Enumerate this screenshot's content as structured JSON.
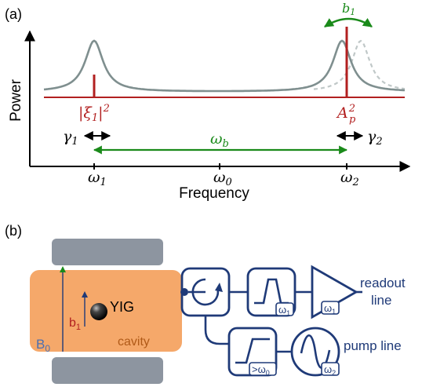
{
  "panel_a": {
    "label": "(a)",
    "ylabel": "Power",
    "xlabel": "Frequency",
    "xticks": [
      "ω",
      "ω",
      "ω"
    ],
    "xtick_subs": [
      "1",
      "0",
      "2"
    ],
    "peak_label_left": "|ξ",
    "peak_label_left_sub": "1",
    "peak_label_left_tail": "|",
    "peak_label_left_sup": "2",
    "peak_label_right": "A",
    "peak_label_right_sub": "p",
    "peak_label_right_sup": "2",
    "gamma1": "γ",
    "gamma1_sub": "1",
    "gamma2": "γ",
    "gamma2_sub": "2",
    "omega_b": "ω",
    "omega_b_sub": "b",
    "b1": "b",
    "b1_sub": "1"
  },
  "panel_b": {
    "label": "(b)",
    "yig": "YIG",
    "cavity": "cavity",
    "b0": "B",
    "b0_sub": "0",
    "b1": "b",
    "b1_sub": "1",
    "filter1_tag": "ω",
    "filter1_tag_sub": "1",
    "amp_tag": "ω",
    "amp_tag_sub": "1",
    "filter2_tag": ">ω",
    "filter2_tag_sub": "0",
    "source_tag": "ω",
    "source_tag_sub": "2",
    "readout_line1": "readout",
    "readout_line2": "line",
    "pump_line": "pump line"
  },
  "colors": {
    "curve": "#7f8f8f",
    "dashed": "#c0c8c8",
    "red": "#b22020",
    "green": "#1a8a1a",
    "navy": "#1f3a78",
    "cavity": "#f5a86a",
    "pole": "#8d95a0"
  }
}
